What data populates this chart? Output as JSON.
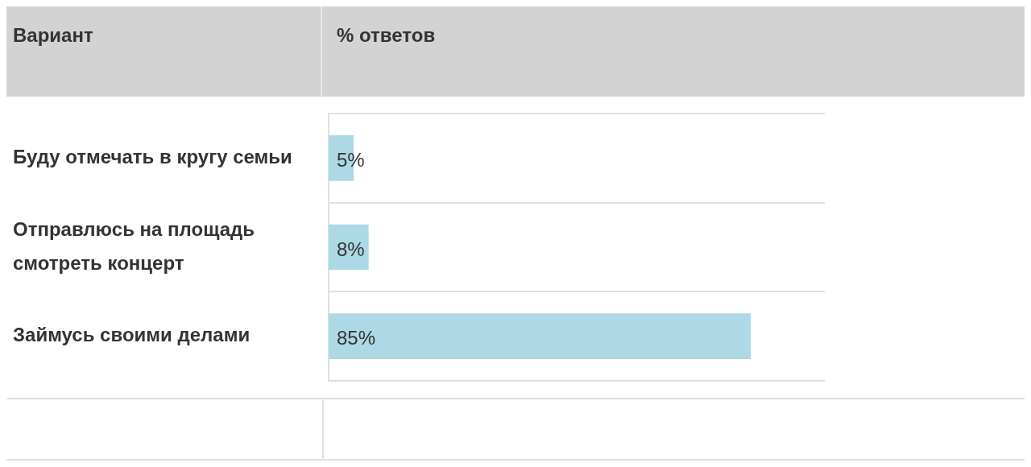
{
  "chart_data": {
    "type": "bar",
    "orientation": "horizontal",
    "ylabel": "Вариант",
    "xlabel": "% ответов",
    "categories": [
      "Буду отмечать в кругу семьи",
      "Отправлюсь на площадь смотреть концерт",
      "Займусь своими делами"
    ],
    "values": [
      5,
      8,
      85
    ],
    "value_labels": [
      "5%",
      "8%",
      "85%"
    ],
    "color": "#add8e6",
    "xlim": [
      0,
      100
    ],
    "tick_labels": "y",
    "grid": "y",
    "legend": false
  }
}
